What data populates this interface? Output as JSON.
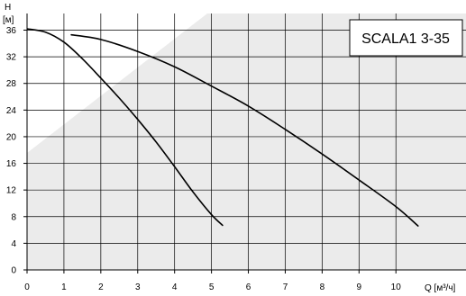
{
  "chart_data": {
    "type": "line",
    "title": "SCALA1 3-35",
    "xlabel": "Q [м³/ч]",
    "ylabel": "H",
    "ylabel_unit": "[м]",
    "xlim": [
      0,
      11.9
    ],
    "ylim": [
      0,
      38.5
    ],
    "x_ticks": [
      0,
      1,
      2,
      3,
      4,
      5,
      6,
      7,
      8,
      9,
      10
    ],
    "y_ticks": [
      0,
      4,
      8,
      12,
      16,
      20,
      24,
      28,
      32,
      36
    ],
    "grid": true,
    "series": [
      {
        "x": [
          0,
          0.5,
          1,
          1.5,
          2,
          2.5,
          3,
          3.5,
          4,
          4.5,
          5,
          5.3
        ],
        "y": [
          36.2,
          35.7,
          34.2,
          31.7,
          28.8,
          25.8,
          22.6,
          19.2,
          15.5,
          11.7,
          8.3,
          6.7
        ],
        "color": "#000000"
      },
      {
        "x": [
          1.2,
          2,
          3,
          4,
          5,
          6,
          7,
          8,
          9,
          10,
          10.6
        ],
        "y": [
          35.3,
          34.6,
          32.8,
          30.5,
          27.6,
          24.6,
          21.1,
          17.4,
          13.5,
          9.5,
          6.6
        ],
        "color": "#000000"
      }
    ],
    "background_colors": {
      "light": "#ffffff",
      "shade": "#ebebeb",
      "grid": "#000000"
    }
  }
}
